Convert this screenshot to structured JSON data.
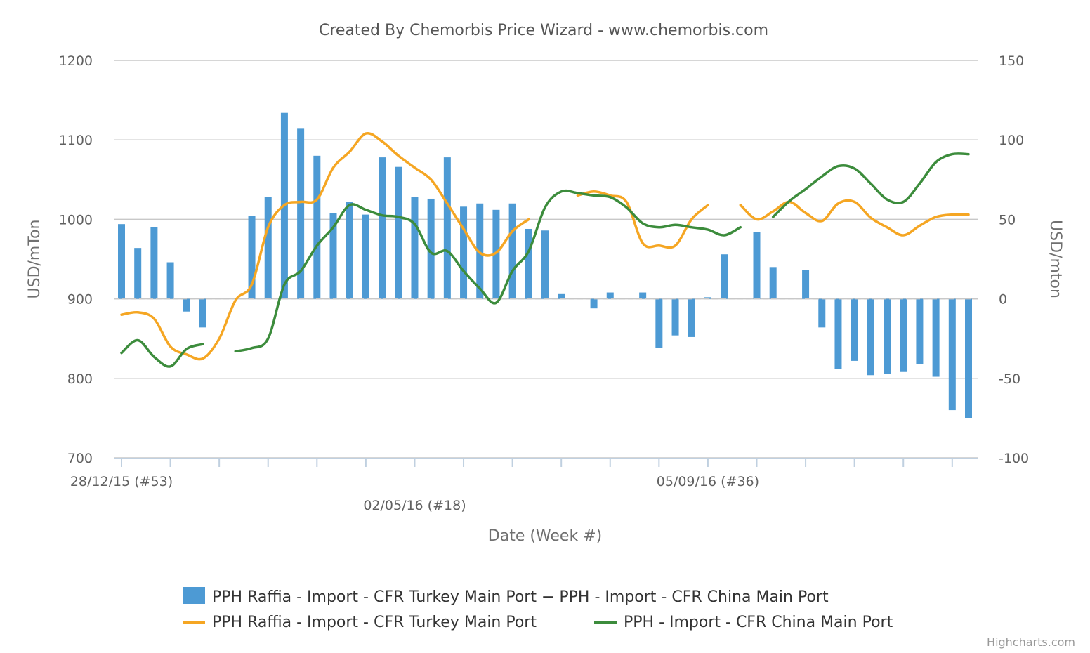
{
  "chart_data": {
    "type": "bar+line",
    "title": "Created By Chemorbis Price Wizard - www.chemorbis.com",
    "xlabel": "Date (Week #)",
    "ylabel_left": "USD/mTon",
    "ylabel_right": "USD/mton",
    "ylim_left": [
      700,
      1200
    ],
    "ylim_right": [
      -100,
      150
    ],
    "yticks_left": [
      700,
      800,
      900,
      1000,
      1100,
      1200
    ],
    "yticks_right": [
      -100,
      -50,
      0,
      50,
      100,
      150
    ],
    "xtick_labels": [
      "28/12/15 (#53)",
      "02/05/16 (#18)",
      "05/09/16 (#36)"
    ],
    "grid": "horizontal",
    "legend_position": "bottom",
    "colors": {
      "bar": "#4d9ad4",
      "turkey": "#f5a623",
      "china": "#3c8c3c"
    },
    "series": [
      {
        "name": "PPH Raffia - Import - CFR Turkey Main Port − PPH - Import - CFR China Main Port",
        "type": "bar",
        "axis": "right",
        "values": [
          47,
          32,
          45,
          23,
          -8,
          -18,
          null,
          null,
          52,
          64,
          117,
          107,
          90,
          54,
          61,
          53,
          89,
          83,
          64,
          63,
          89,
          58,
          60,
          56,
          60,
          44,
          43,
          3,
          null,
          -6,
          4,
          null,
          4,
          -31,
          -23,
          -24,
          1,
          28,
          null,
          42,
          20,
          null,
          18,
          -18,
          -44,
          -39,
          -48,
          -47,
          -46,
          -41,
          -49,
          -70,
          -75
        ]
      },
      {
        "name": "PPH Raffia - Import - CFR Turkey Main Port",
        "type": "line",
        "axis": "left",
        "values": [
          880,
          883,
          875,
          840,
          830,
          825,
          850,
          898,
          918,
          990,
          1018,
          1022,
          1025,
          1065,
          1085,
          1108,
          1098,
          1080,
          1065,
          1050,
          1020,
          988,
          958,
          958,
          985,
          1000,
          null,
          null,
          1030,
          1035,
          1030,
          1022,
          970,
          967,
          967,
          1000,
          1018,
          null,
          1018,
          1000,
          1010,
          1022,
          1008,
          998,
          1020,
          1022,
          1002,
          990,
          980,
          992,
          1003,
          1006,
          1006
        ]
      },
      {
        "name": "PPH - Import - CFR China Main Port",
        "type": "line",
        "axis": "left",
        "values": [
          832,
          848,
          827,
          815,
          837,
          843,
          null,
          834,
          838,
          850,
          918,
          935,
          967,
          990,
          1018,
          1012,
          1005,
          1003,
          994,
          958,
          960,
          935,
          913,
          895,
          935,
          960,
          1015,
          1035,
          1033,
          1030,
          1028,
          1015,
          995,
          990,
          993,
          990,
          987,
          980,
          990,
          null,
          1003,
          1023,
          1038,
          1054,
          1067,
          1064,
          1045,
          1025,
          1022,
          1045,
          1072,
          1082,
          1082
        ]
      }
    ]
  }
}
